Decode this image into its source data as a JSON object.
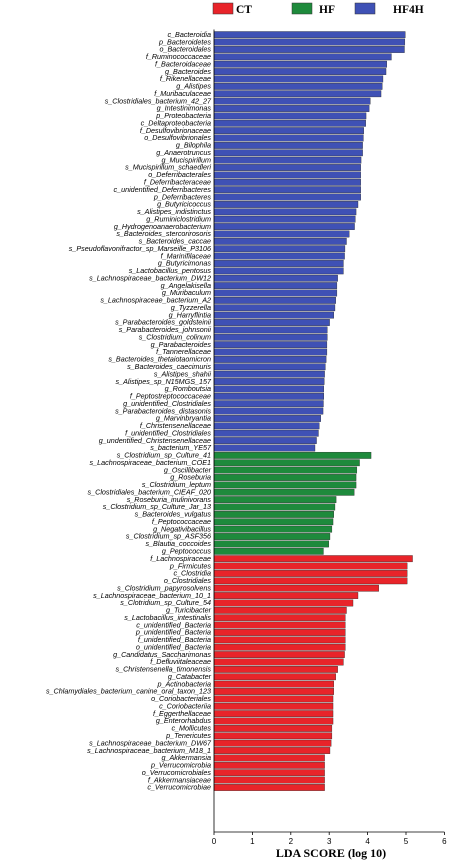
{
  "chart_data": {
    "type": "bar",
    "orientation": "horizontal",
    "xlabel": "LDA SCORE (log 10)",
    "xlim": [
      0,
      6
    ],
    "xticks": [
      0,
      1,
      2,
      3,
      4,
      5,
      6
    ],
    "legend": {
      "placement": "top",
      "entries": [
        {
          "name": "CT",
          "color": "#e8242a"
        },
        {
          "name": "HF",
          "color": "#1e8a3c"
        },
        {
          "name": "HF4H",
          "color": "#3f51b5"
        }
      ]
    },
    "groups": [
      {
        "name": "HF4H",
        "color": "#3f51b5",
        "categories": [
          "c_Bacteroidia",
          "p_Bacteroidetes",
          "o_Bacteroidales",
          "f_Ruminococcaceae",
          "f_Bacteroidaceae",
          "g_Bacteroides",
          "f_Rikenellaceae",
          "g_Alistipes",
          "f_Muribaculaceae",
          "s_Clostridiales_bacterium_42_27",
          "g_Intestinimonas",
          "p_Proteobacteria",
          "c_Deltaproteobacteria",
          "f_Desulfovibrionaceae",
          "o_Desulfovibrionales",
          "g_Bilophila",
          "g_Anaerotruncus",
          "g_Mucispirillum",
          "s_Mucispirillum_schaedleri",
          "o_Deferribacterales",
          "f_Deferribacteraceae",
          "c_unidentified_Deferribacteres",
          "p_Deferribacteres",
          "g_Butyricicoccus",
          "s_Alistipes_indistinctus",
          "g_Ruminiclostridium",
          "g_Hydrogenoanaerobacterium",
          "s_Bacteroides_stercorirosoris",
          "s_Bacteroides_caccae",
          "s_Pseudoflavonifractor_sp_Marseille_P3106",
          "f_Marinifilaceae",
          "g_Butyricimonas",
          "s_Lactobacillus_pentosus",
          "s_Lachnospiraceae_bacterium_DW12",
          "g_Angelakisella",
          "g_Muribaculum",
          "s_Lachnospiraceae_bacterium_A2",
          "g_Tyzzerella",
          "g_Harryflintia",
          "s_Parabacteroides_goldsteinii",
          "s_Parabacteroides_johnsonii",
          "s_Clostridium_colinum",
          "g_Parabacteroides",
          "f_Tannerellaceae",
          "s_Bacteroides_thetaiotaomicron",
          "s_Bacteroides_caecimuris",
          "s_Alistipes_shahii",
          "s_Alistipes_sp_N15MGS_157",
          "g_Romboutsia",
          "f_Peptostreptococcaceae",
          "g_unidentified_Clostridiales",
          "s_Parabacteroides_distasonis",
          "g_Marvinbryantia",
          "f_Christensenellaceae",
          "f_unidentified_Clostridiales",
          "g_undentified_Christensenellaceae",
          "s_bacterium_YE57"
        ],
        "values": [
          4.98,
          4.97,
          4.96,
          4.62,
          4.5,
          4.48,
          4.4,
          4.38,
          4.35,
          4.07,
          4.04,
          3.96,
          3.95,
          3.9,
          3.89,
          3.87,
          3.87,
          3.83,
          3.82,
          3.82,
          3.82,
          3.82,
          3.82,
          3.75,
          3.7,
          3.68,
          3.66,
          3.52,
          3.45,
          3.41,
          3.4,
          3.37,
          3.37,
          3.22,
          3.2,
          3.2,
          3.17,
          3.15,
          3.12,
          3.01,
          2.95,
          2.95,
          2.94,
          2.94,
          2.92,
          2.9,
          2.88,
          2.87,
          2.86,
          2.86,
          2.85,
          2.84,
          2.78,
          2.74,
          2.72,
          2.67,
          2.63
        ]
      },
      {
        "name": "HF",
        "color": "#1e8a3c",
        "categories": [
          "s_Clostridium_sp_Culture_41",
          "s_Lachnospiraceae_bacterium_COE1",
          "g_Oscillibacter",
          "g_Roseburia",
          "s_Clostridium_leptum",
          "s_Clostridiales_bacterium_CIEAF_020",
          "s_Roseburia_inulinivorans",
          "s_Clostridium_sp_Culture_Jar_13",
          "s_Bacteroides_vulgatus",
          "f_Peptococcaceae",
          "g_Negativibacillus",
          "s_Clostridium_sp_ASF356",
          "s_Blautia_coccoides",
          "g_Peptococcus"
        ],
        "values": [
          4.09,
          3.79,
          3.72,
          3.7,
          3.7,
          3.65,
          3.18,
          3.15,
          3.12,
          3.1,
          3.07,
          3.02,
          2.99,
          2.85
        ]
      },
      {
        "name": "CT",
        "color": "#e8242a",
        "categories": [
          "f_Lachnospiraceae",
          "p_Firmicutes",
          "c_Clostridia",
          "o_Clostridiales",
          "s_Clostridium_papyrosolvens",
          "s_Lachnospiraceae_bacterium_10_1",
          "s_Clotridium_sp_Culture_54",
          "g_Turicibacter",
          "s_Lactobacillus_intestinalis",
          "c_unidentified_Bacteria",
          "p_unidentified_Bacteria",
          "f_unidentified_Bacteria",
          "o_unidentified_Bacteria",
          "g_Candidatus_Saccharimonas",
          "f_Defluviitaleaceae",
          "s_Christensenella_timonensis",
          "g_Catabacter",
          "p_Actinobacteria",
          "s_Chlamydiales_bacterium_canine_oral_taxon_123",
          "o_Coriobacteriales",
          "c_Coriobacteriia",
          "f_Eggerthellaceae",
          "g_Enterorhabdus",
          "c_Mollicutes",
          "p_Tenericutes",
          "s_Lachnospiraceae_bacterium_DW67",
          "s_Lachnospiraceae_bacterium_M18_1",
          "g_Akkermansia",
          "p_Verrucomicrobia",
          "o_Verrucomicrobiales",
          "f_Akkermansiaceae",
          "c_Verrucomicrobiae"
        ],
        "values": [
          5.17,
          5.03,
          5.03,
          5.03,
          4.29,
          3.75,
          3.62,
          3.45,
          3.42,
          3.42,
          3.42,
          3.42,
          3.42,
          3.4,
          3.37,
          3.22,
          3.17,
          3.12,
          3.12,
          3.1,
          3.1,
          3.1,
          3.1,
          3.07,
          3.07,
          3.05,
          3.02,
          2.88,
          2.88,
          2.88,
          2.88,
          2.88
        ]
      }
    ]
  }
}
